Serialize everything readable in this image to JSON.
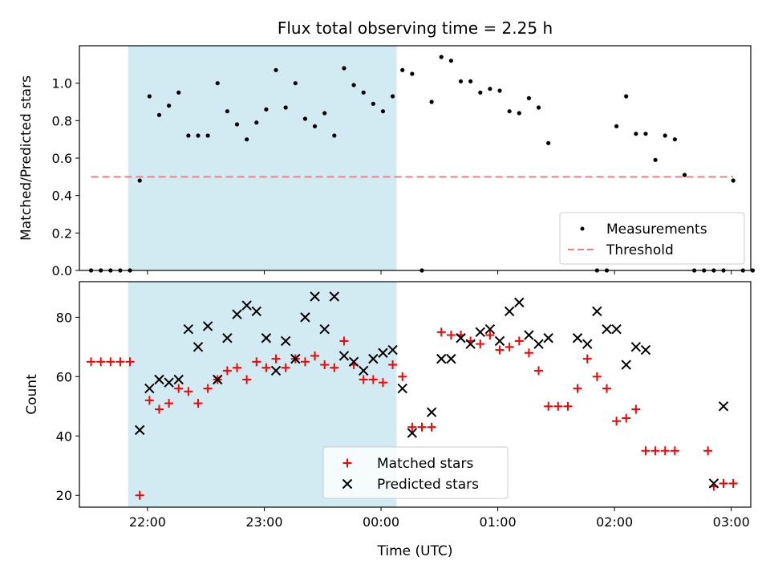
{
  "chart_data": [
    {
      "type": "scatter",
      "title": "Flux total observing time = 2.25 h",
      "xlabel": "",
      "ylabel": "Matched/Predicted stars",
      "ylim": [
        0,
        1.2
      ],
      "yticks": [
        "0.0",
        "0.2",
        "0.4",
        "0.6",
        "0.8",
        "1.0"
      ],
      "xlim": [
        "21:25",
        "03:10"
      ],
      "shaded_interval": [
        "21:50",
        "00:08"
      ],
      "legend": {
        "placement": "lower-right"
      },
      "series": [
        {
          "name": "Measurements",
          "marker": "dot",
          "color": "#000000",
          "points": [
            [
              "21:31",
              0
            ],
            [
              "21:36",
              0
            ],
            [
              "21:41",
              0
            ],
            [
              "21:46",
              0
            ],
            [
              "21:51",
              0
            ],
            [
              "21:56",
              0.48
            ],
            [
              "22:01",
              0.93
            ],
            [
              "22:06",
              0.83
            ],
            [
              "22:11",
              0.88
            ],
            [
              "22:16",
              0.95
            ],
            [
              "22:21",
              0.72
            ],
            [
              "22:26",
              0.72
            ],
            [
              "22:31",
              0.72
            ],
            [
              "22:36",
              1.0
            ],
            [
              "22:41",
              0.85
            ],
            [
              "22:46",
              0.78
            ],
            [
              "22:51",
              0.7
            ],
            [
              "22:56",
              0.79
            ],
            [
              "23:01",
              0.86
            ],
            [
              "23:06",
              1.07
            ],
            [
              "23:11",
              0.87
            ],
            [
              "23:16",
              1.0
            ],
            [
              "23:21",
              0.81
            ],
            [
              "23:26",
              0.77
            ],
            [
              "23:31",
              0.84
            ],
            [
              "23:36",
              0.72
            ],
            [
              "23:41",
              1.08
            ],
            [
              "23:46",
              0.99
            ],
            [
              "23:51",
              0.95
            ],
            [
              "23:56",
              0.89
            ],
            [
              "00:01",
              0.85
            ],
            [
              "00:06",
              0.93
            ],
            [
              "00:11",
              1.07
            ],
            [
              "00:16",
              1.05
            ],
            [
              "00:21",
              0
            ],
            [
              "00:26",
              0.9
            ],
            [
              "00:31",
              1.14
            ],
            [
              "00:36",
              1.12
            ],
            [
              "00:41",
              1.01
            ],
            [
              "00:46",
              1.01
            ],
            [
              "00:51",
              0.95
            ],
            [
              "00:56",
              0.97
            ],
            [
              "01:01",
              0.96
            ],
            [
              "01:06",
              0.85
            ],
            [
              "01:11",
              0.84
            ],
            [
              "01:16",
              0.92
            ],
            [
              "01:21",
              0.87
            ],
            [
              "01:26",
              0.68
            ],
            [
              "01:51",
              0
            ],
            [
              "01:56",
              0
            ],
            [
              "02:01",
              0.77
            ],
            [
              "02:06",
              0.93
            ],
            [
              "02:11",
              0.73
            ],
            [
              "02:16",
              0.73
            ],
            [
              "02:21",
              0.59
            ],
            [
              "02:26",
              0.72
            ],
            [
              "02:31",
              0.7
            ],
            [
              "02:36",
              0.51
            ],
            [
              "02:41",
              0
            ],
            [
              "02:46",
              0
            ],
            [
              "02:51",
              0
            ],
            [
              "02:56",
              0
            ],
            [
              "03:01",
              0.48
            ],
            [
              "03:06",
              0
            ],
            [
              "03:11",
              0
            ]
          ]
        },
        {
          "name": "Threshold",
          "style": "dashed",
          "color": "#f08080",
          "points": [
            [
              "21:31",
              0.5
            ],
            [
              "03:01",
              0.5
            ]
          ]
        }
      ]
    },
    {
      "type": "scatter",
      "title": "",
      "xlabel": "Time (UTC)",
      "ylabel": "Count",
      "ylim": [
        16,
        92
      ],
      "yticks": [
        "20",
        "40",
        "60",
        "80"
      ],
      "xlim": [
        "21:25",
        "03:10"
      ],
      "xticks": [
        "22:00",
        "23:00",
        "00:00",
        "01:00",
        "02:00",
        "03:00"
      ],
      "shaded_interval": [
        "21:50",
        "00:08"
      ],
      "legend": {
        "placement": "lower-center"
      },
      "series": [
        {
          "name": "Matched stars",
          "marker": "plus",
          "color": "#ff0000",
          "points": [
            [
              "21:31",
              65
            ],
            [
              "21:36",
              65
            ],
            [
              "21:41",
              65
            ],
            [
              "21:46",
              65
            ],
            [
              "21:51",
              65
            ],
            [
              "21:56",
              20
            ],
            [
              "22:01",
              52
            ],
            [
              "22:06",
              49
            ],
            [
              "22:11",
              51
            ],
            [
              "22:16",
              56
            ],
            [
              "22:21",
              55
            ],
            [
              "22:26",
              51
            ],
            [
              "22:31",
              56
            ],
            [
              "22:36",
              59
            ],
            [
              "22:41",
              62
            ],
            [
              "22:46",
              63
            ],
            [
              "22:51",
              59
            ],
            [
              "22:56",
              65
            ],
            [
              "23:01",
              63
            ],
            [
              "23:06",
              66
            ],
            [
              "23:11",
              63
            ],
            [
              "23:16",
              66
            ],
            [
              "23:21",
              65
            ],
            [
              "23:26",
              67
            ],
            [
              "23:31",
              64
            ],
            [
              "23:36",
              63
            ],
            [
              "23:41",
              72
            ],
            [
              "23:46",
              64
            ],
            [
              "23:51",
              59
            ],
            [
              "23:56",
              59
            ],
            [
              "00:01",
              58
            ],
            [
              "00:06",
              64
            ],
            [
              "00:11",
              60
            ],
            [
              "00:16",
              43
            ],
            [
              "00:21",
              43
            ],
            [
              "00:26",
              43
            ],
            [
              "00:31",
              75
            ],
            [
              "00:36",
              74
            ],
            [
              "00:41",
              74
            ],
            [
              "00:46",
              72
            ],
            [
              "00:51",
              71
            ],
            [
              "00:56",
              74
            ],
            [
              "01:01",
              69
            ],
            [
              "01:06",
              70
            ],
            [
              "01:11",
              72
            ],
            [
              "01:16",
              68
            ],
            [
              "01:21",
              62
            ],
            [
              "01:26",
              50
            ],
            [
              "01:31",
              50
            ],
            [
              "01:36",
              50
            ],
            [
              "01:41",
              56
            ],
            [
              "01:46",
              66
            ],
            [
              "01:51",
              60
            ],
            [
              "01:56",
              56
            ],
            [
              "02:01",
              45
            ],
            [
              "02:06",
              46
            ],
            [
              "02:11",
              49
            ],
            [
              "02:16",
              35
            ],
            [
              "02:21",
              35
            ],
            [
              "02:26",
              35
            ],
            [
              "02:31",
              35
            ],
            [
              "02:48",
              35
            ],
            [
              "02:51",
              23
            ],
            [
              "02:56",
              24
            ],
            [
              "03:01",
              24
            ]
          ]
        },
        {
          "name": "Predicted stars",
          "marker": "x",
          "color": "#000000",
          "points": [
            [
              "21:56",
              42
            ],
            [
              "22:01",
              56
            ],
            [
              "22:06",
              59
            ],
            [
              "22:11",
              58
            ],
            [
              "22:16",
              59
            ],
            [
              "22:21",
              76
            ],
            [
              "22:26",
              70
            ],
            [
              "22:31",
              77
            ],
            [
              "22:36",
              59
            ],
            [
              "22:41",
              73
            ],
            [
              "22:46",
              81
            ],
            [
              "22:51",
              84
            ],
            [
              "22:56",
              82
            ],
            [
              "23:01",
              73
            ],
            [
              "23:06",
              62
            ],
            [
              "23:11",
              72
            ],
            [
              "23:16",
              66
            ],
            [
              "23:21",
              80
            ],
            [
              "23:26",
              87
            ],
            [
              "23:31",
              76
            ],
            [
              "23:36",
              87
            ],
            [
              "23:41",
              67
            ],
            [
              "23:46",
              65
            ],
            [
              "23:51",
              62
            ],
            [
              "23:56",
              66
            ],
            [
              "00:01",
              68
            ],
            [
              "00:06",
              69
            ],
            [
              "00:11",
              56
            ],
            [
              "00:16",
              41
            ],
            [
              "00:26",
              48
            ],
            [
              "00:31",
              66
            ],
            [
              "00:36",
              66
            ],
            [
              "00:41",
              73
            ],
            [
              "00:46",
              71
            ],
            [
              "00:51",
              75
            ],
            [
              "00:56",
              76
            ],
            [
              "01:01",
              72
            ],
            [
              "01:06",
              82
            ],
            [
              "01:11",
              85
            ],
            [
              "01:16",
              74
            ],
            [
              "01:21",
              71
            ],
            [
              "01:26",
              73
            ],
            [
              "01:41",
              73
            ],
            [
              "01:46",
              71
            ],
            [
              "01:51",
              82
            ],
            [
              "01:56",
              76
            ],
            [
              "02:01",
              76
            ],
            [
              "02:06",
              64
            ],
            [
              "02:11",
              70
            ],
            [
              "02:16",
              69
            ],
            [
              "02:51",
              24
            ],
            [
              "02:56",
              50
            ]
          ]
        }
      ]
    }
  ],
  "colors": {
    "shade": "#add8e6",
    "shade_opacity": 0.55,
    "matched": "#ff0000",
    "predicted": "#000000",
    "threshold": "#f08080"
  }
}
